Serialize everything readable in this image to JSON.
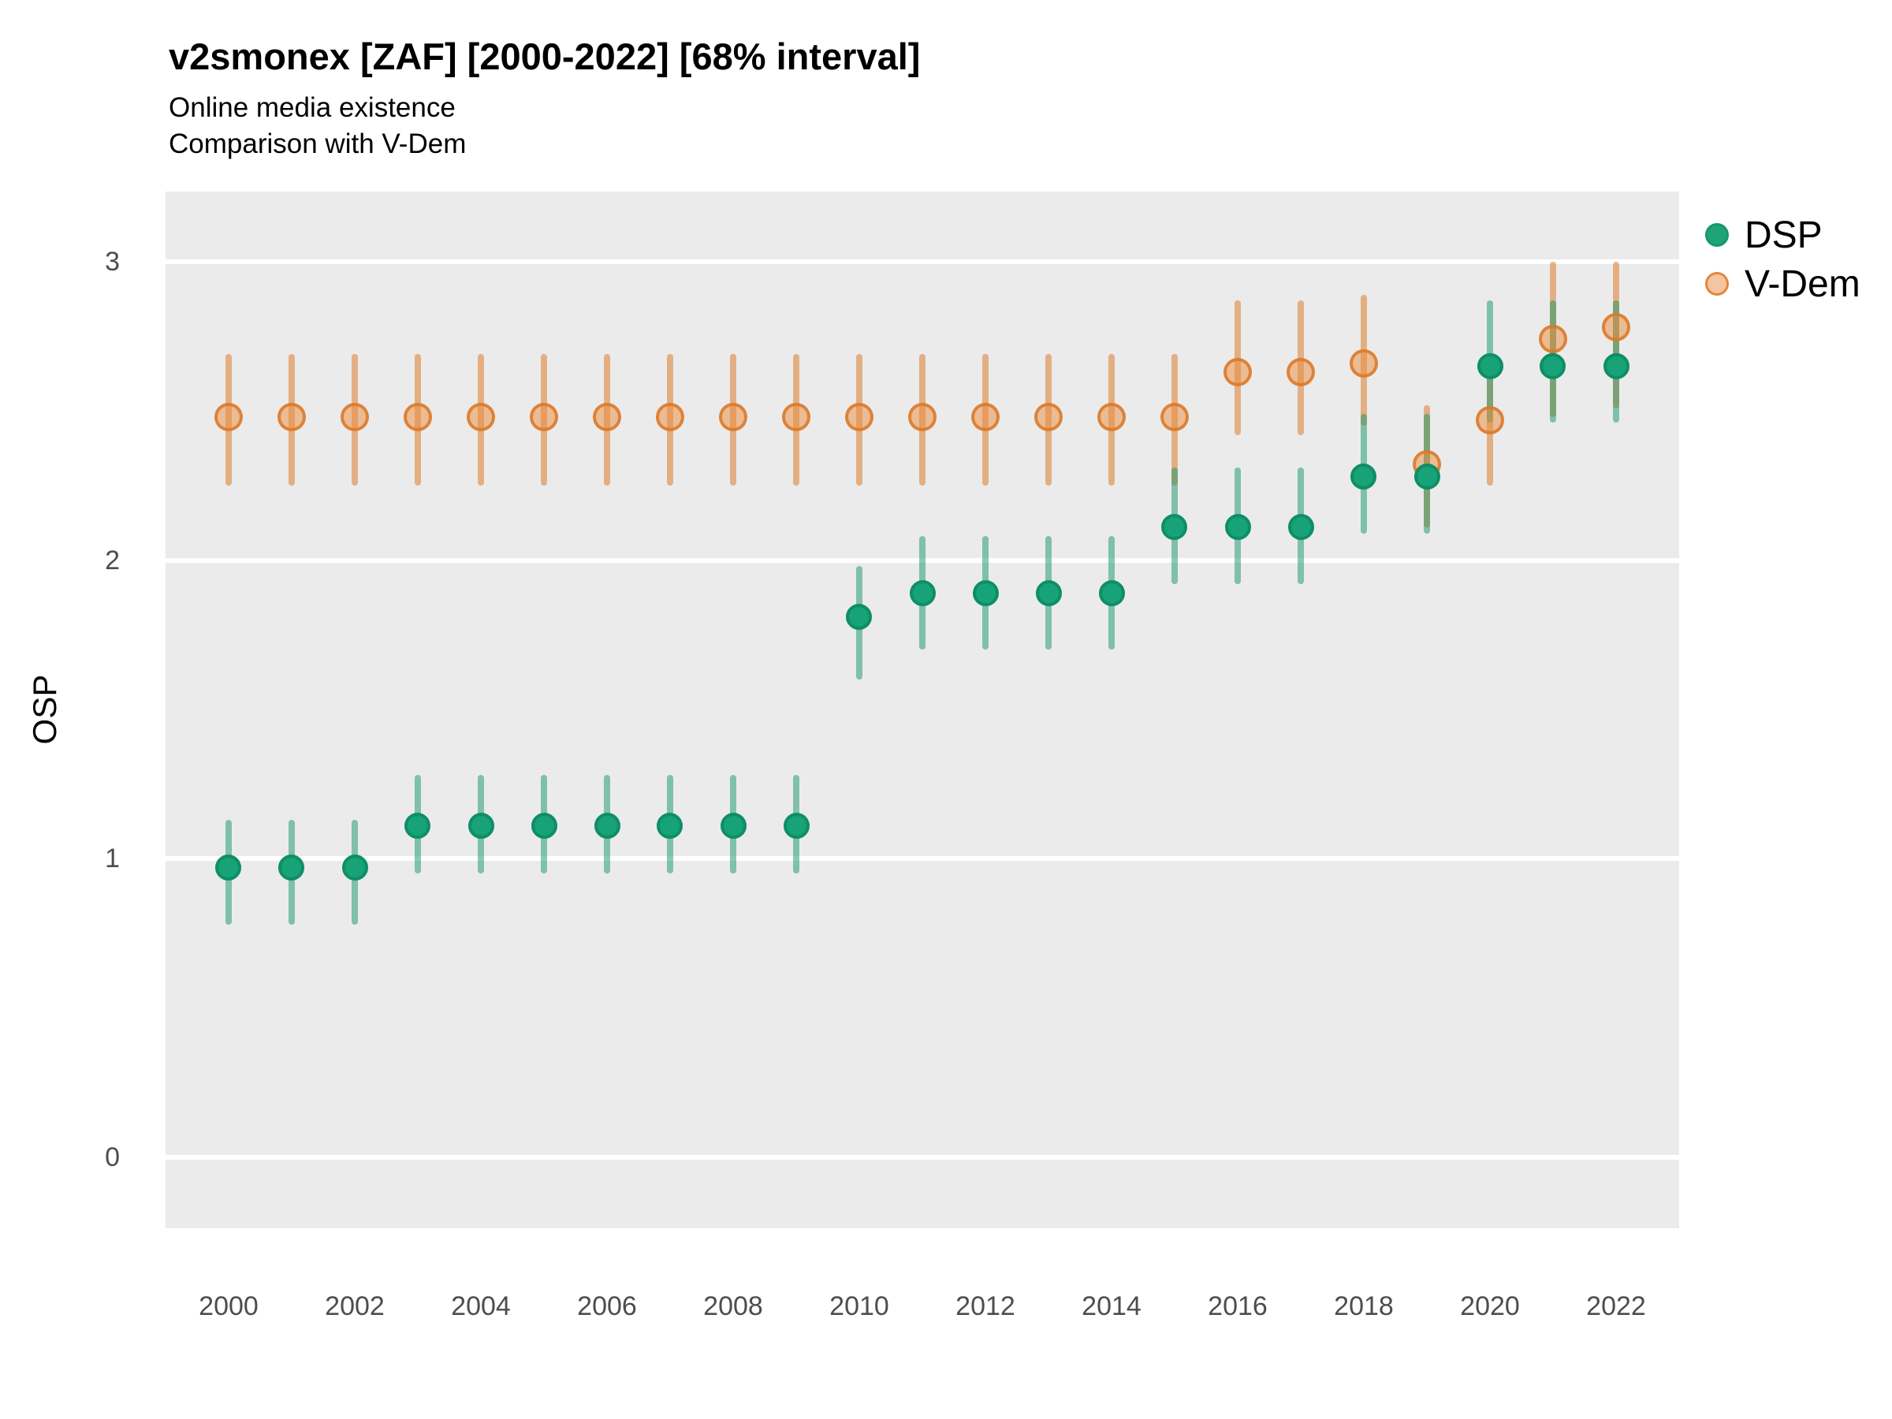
{
  "chart_data": {
    "type": "scatter",
    "title": "v2smonex [ZAF] [2000-2022] [68% interval]",
    "subtitle_1": "Online media existence",
    "subtitle_2": "Comparison with V-Dem",
    "ylabel": "OSP",
    "x_domain": [
      1999,
      2023
    ],
    "y_domain": [
      -0.238,
      3.235
    ],
    "x_ticks": [
      2000,
      2002,
      2004,
      2006,
      2008,
      2010,
      2012,
      2014,
      2016,
      2018,
      2020,
      2022
    ],
    "y_ticks": [
      0,
      1,
      2,
      3
    ],
    "grid": "major-horizontal-only",
    "legend_position": "right",
    "panel_bg": "#EBEBEB",
    "gridline_color": "#FFFFFF",
    "interval": "68%",
    "series": [
      {
        "name": "DSP",
        "point_fill": "#17A377",
        "point_stroke": "#0E8E64",
        "bar_color": "rgba(20,150,103,0.5)",
        "points": [
          {
            "year": 2000,
            "value": 0.97,
            "lo": 0.78,
            "hi": 1.13
          },
          {
            "year": 2001,
            "value": 0.97,
            "lo": 0.78,
            "hi": 1.13
          },
          {
            "year": 2002,
            "value": 0.97,
            "lo": 0.78,
            "hi": 1.13
          },
          {
            "year": 2003,
            "value": 1.11,
            "lo": 0.95,
            "hi": 1.28
          },
          {
            "year": 2004,
            "value": 1.11,
            "lo": 0.95,
            "hi": 1.28
          },
          {
            "year": 2005,
            "value": 1.11,
            "lo": 0.95,
            "hi": 1.28
          },
          {
            "year": 2006,
            "value": 1.11,
            "lo": 0.95,
            "hi": 1.28
          },
          {
            "year": 2007,
            "value": 1.11,
            "lo": 0.95,
            "hi": 1.28
          },
          {
            "year": 2008,
            "value": 1.11,
            "lo": 0.95,
            "hi": 1.28
          },
          {
            "year": 2009,
            "value": 1.11,
            "lo": 0.95,
            "hi": 1.28
          },
          {
            "year": 2010,
            "value": 1.81,
            "lo": 1.6,
            "hi": 1.98
          },
          {
            "year": 2011,
            "value": 1.89,
            "lo": 1.7,
            "hi": 2.08
          },
          {
            "year": 2012,
            "value": 1.89,
            "lo": 1.7,
            "hi": 2.08
          },
          {
            "year": 2013,
            "value": 1.89,
            "lo": 1.7,
            "hi": 2.08
          },
          {
            "year": 2014,
            "value": 1.89,
            "lo": 1.7,
            "hi": 2.08
          },
          {
            "year": 2015,
            "value": 2.11,
            "lo": 1.92,
            "hi": 2.31
          },
          {
            "year": 2016,
            "value": 2.11,
            "lo": 1.92,
            "hi": 2.31
          },
          {
            "year": 2017,
            "value": 2.11,
            "lo": 1.92,
            "hi": 2.31
          },
          {
            "year": 2018,
            "value": 2.28,
            "lo": 2.09,
            "hi": 2.49
          },
          {
            "year": 2019,
            "value": 2.28,
            "lo": 2.09,
            "hi": 2.49
          },
          {
            "year": 2020,
            "value": 2.65,
            "lo": 2.46,
            "hi": 2.87
          },
          {
            "year": 2021,
            "value": 2.65,
            "lo": 2.46,
            "hi": 2.87
          },
          {
            "year": 2022,
            "value": 2.65,
            "lo": 2.46,
            "hi": 2.87
          }
        ]
      },
      {
        "name": "V-Dem",
        "point_fill": "rgba(235,140,60,0.5)",
        "point_stroke": "rgba(219,120,40,0.85)",
        "bar_color": "rgba(221,126,43,0.55)",
        "points": [
          {
            "year": 2000,
            "value": 2.48,
            "lo": 2.25,
            "hi": 2.69
          },
          {
            "year": 2001,
            "value": 2.48,
            "lo": 2.25,
            "hi": 2.69
          },
          {
            "year": 2002,
            "value": 2.48,
            "lo": 2.25,
            "hi": 2.69
          },
          {
            "year": 2003,
            "value": 2.48,
            "lo": 2.25,
            "hi": 2.69
          },
          {
            "year": 2004,
            "value": 2.48,
            "lo": 2.25,
            "hi": 2.69
          },
          {
            "year": 2005,
            "value": 2.48,
            "lo": 2.25,
            "hi": 2.69
          },
          {
            "year": 2006,
            "value": 2.48,
            "lo": 2.25,
            "hi": 2.69
          },
          {
            "year": 2007,
            "value": 2.48,
            "lo": 2.25,
            "hi": 2.69
          },
          {
            "year": 2008,
            "value": 2.48,
            "lo": 2.25,
            "hi": 2.69
          },
          {
            "year": 2009,
            "value": 2.48,
            "lo": 2.25,
            "hi": 2.69
          },
          {
            "year": 2010,
            "value": 2.48,
            "lo": 2.25,
            "hi": 2.69
          },
          {
            "year": 2011,
            "value": 2.48,
            "lo": 2.25,
            "hi": 2.69
          },
          {
            "year": 2012,
            "value": 2.48,
            "lo": 2.25,
            "hi": 2.69
          },
          {
            "year": 2013,
            "value": 2.48,
            "lo": 2.25,
            "hi": 2.69
          },
          {
            "year": 2014,
            "value": 2.48,
            "lo": 2.25,
            "hi": 2.69
          },
          {
            "year": 2015,
            "value": 2.48,
            "lo": 2.25,
            "hi": 2.69
          },
          {
            "year": 2016,
            "value": 2.63,
            "lo": 2.42,
            "hi": 2.87
          },
          {
            "year": 2017,
            "value": 2.63,
            "lo": 2.42,
            "hi": 2.87
          },
          {
            "year": 2018,
            "value": 2.66,
            "lo": 2.45,
            "hi": 2.89
          },
          {
            "year": 2019,
            "value": 2.32,
            "lo": 2.11,
            "hi": 2.52
          },
          {
            "year": 2020,
            "value": 2.47,
            "lo": 2.25,
            "hi": 2.69
          },
          {
            "year": 2021,
            "value": 2.74,
            "lo": 2.48,
            "hi": 3.0
          },
          {
            "year": 2022,
            "value": 2.78,
            "lo": 2.51,
            "hi": 3.0
          }
        ]
      }
    ]
  }
}
